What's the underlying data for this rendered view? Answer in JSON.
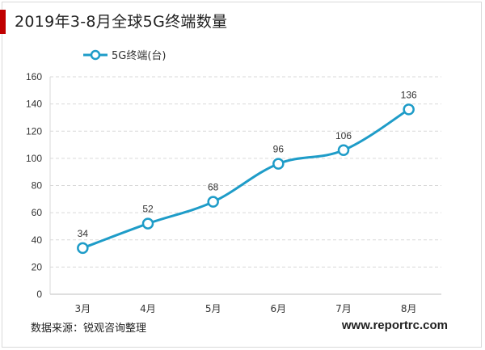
{
  "header": {
    "title": "2019年3-8月全球5G终端数量"
  },
  "footer": {
    "source": "数据来源：锐观咨询整理",
    "website": "www.reportrc.com"
  },
  "style": {
    "accent": "#1e9cc8",
    "title_bar": "#c00000"
  },
  "chart_data": {
    "type": "line",
    "title": "2019年3-8月全球5G终端数量",
    "categories": [
      "3月",
      "4月",
      "5月",
      "6月",
      "7月",
      "8月"
    ],
    "series": [
      {
        "name": "5G终端(台)",
        "values": [
          34,
          52,
          68,
          96,
          106,
          136
        ]
      }
    ],
    "ylim": [
      0,
      160
    ],
    "yticks": [
      0,
      20,
      40,
      60,
      80,
      100,
      120,
      140,
      160
    ],
    "grid": true,
    "legend": "top-left",
    "data_labels": true
  }
}
